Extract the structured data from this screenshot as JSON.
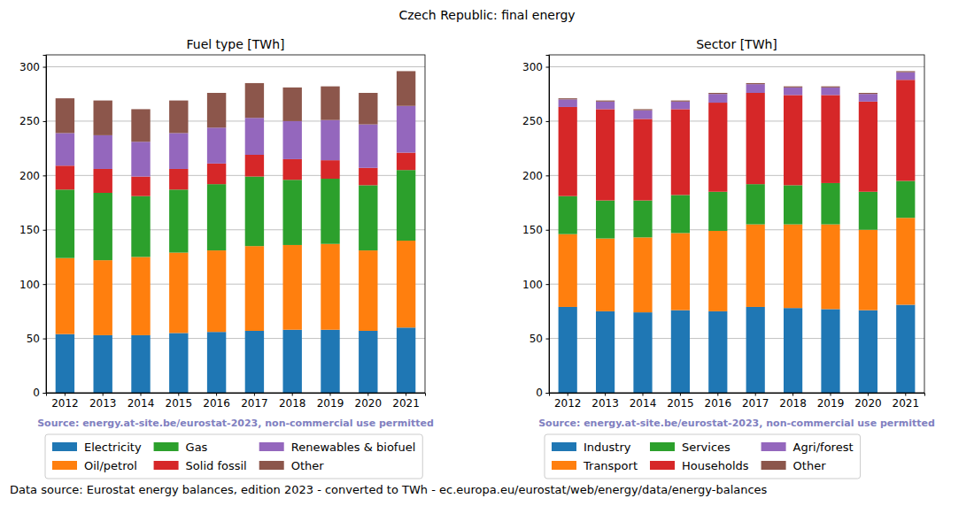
{
  "title": "Czech Republic: final energy",
  "footnote": "Data source: Eurostat energy balances, edition 2023 - converted to TWh - ec.europa.eu/eurostat/web/energy/data/energy-balances",
  "chart_data": [
    {
      "type": "bar",
      "stacked": true,
      "grid": true,
      "legend": "bottom",
      "title": "Fuel type [TWh]",
      "source_note": "Source: energy.at-site.be/eurostat-2023, non-commercial use permitted",
      "categories": [
        "2012",
        "2013",
        "2014",
        "2015",
        "2016",
        "2017",
        "2018",
        "2019",
        "2020",
        "2021"
      ],
      "ylim": [
        0,
        311
      ],
      "yticks": [
        0,
        50,
        100,
        150,
        200,
        250,
        300
      ],
      "series": [
        {
          "name": "Electricity",
          "color": "#1f77b4",
          "values": [
            54,
            53,
            53,
            55,
            56,
            57,
            58,
            58,
            57,
            60
          ]
        },
        {
          "name": "Oil/petrol",
          "color": "#ff7f0e",
          "values": [
            70,
            69,
            72,
            74,
            75,
            78,
            78,
            79,
            74,
            80
          ]
        },
        {
          "name": "Gas",
          "color": "#2ca02c",
          "values": [
            63,
            62,
            56,
            58,
            61,
            64,
            60,
            60,
            60,
            65
          ]
        },
        {
          "name": "Solid fossil",
          "color": "#d62728",
          "values": [
            22,
            22,
            18,
            19,
            19,
            20,
            19,
            17,
            16,
            16
          ]
        },
        {
          "name": "Renewables & biofuel",
          "color": "#9467bd",
          "values": [
            30,
            31,
            32,
            33,
            33,
            34,
            35,
            37,
            40,
            43
          ]
        },
        {
          "name": "Other",
          "color": "#8c564b",
          "values": [
            32,
            32,
            30,
            30,
            32,
            32,
            31,
            31,
            29,
            32
          ]
        }
      ]
    },
    {
      "type": "bar",
      "stacked": true,
      "grid": true,
      "legend": "bottom",
      "title": "Sector [TWh]",
      "source_note": "Source: energy.at-site.be/eurostat-2023, non-commercial use permitted",
      "categories": [
        "2012",
        "2013",
        "2014",
        "2015",
        "2016",
        "2017",
        "2018",
        "2019",
        "2020",
        "2021"
      ],
      "ylim": [
        0,
        311
      ],
      "yticks": [
        0,
        50,
        100,
        150,
        200,
        250,
        300
      ],
      "series": [
        {
          "name": "Industry",
          "color": "#1f77b4",
          "values": [
            79,
            75,
            74,
            76,
            75,
            79,
            78,
            77,
            76,
            81
          ]
        },
        {
          "name": "Transport",
          "color": "#ff7f0e",
          "values": [
            67,
            67,
            69,
            71,
            74,
            76,
            77,
            78,
            74,
            80
          ]
        },
        {
          "name": "Services",
          "color": "#2ca02c",
          "values": [
            35,
            35,
            34,
            35,
            36,
            37,
            36,
            38,
            35,
            34
          ]
        },
        {
          "name": "Households",
          "color": "#d62728",
          "values": [
            82,
            84,
            75,
            79,
            82,
            84,
            83,
            81,
            83,
            93
          ]
        },
        {
          "name": "Agri/forest",
          "color": "#9467bd",
          "values": [
            7,
            7,
            8,
            7,
            8,
            8,
            7,
            7,
            7,
            7
          ]
        },
        {
          "name": "Other",
          "color": "#8c564b",
          "values": [
            1,
            1,
            1,
            1,
            1,
            1,
            1,
            1,
            1,
            1
          ]
        }
      ]
    }
  ]
}
